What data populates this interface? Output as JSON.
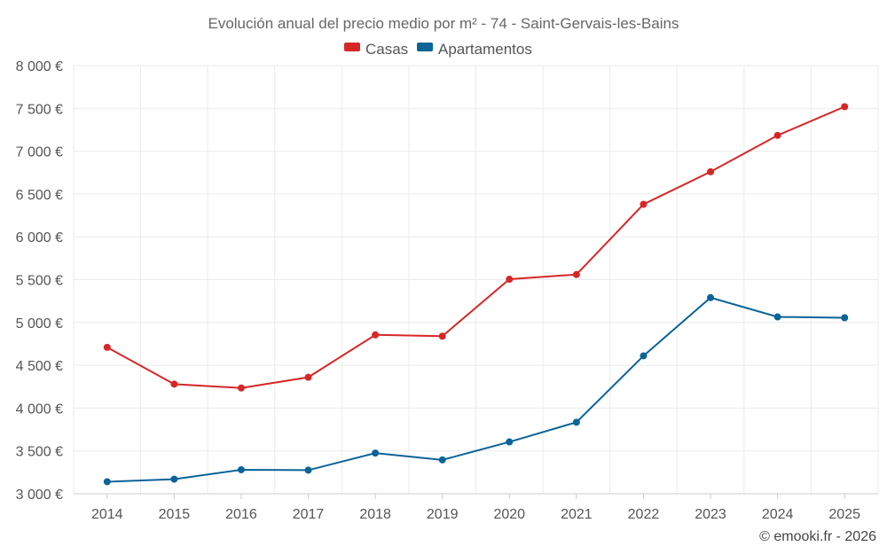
{
  "chart_data": {
    "type": "line",
    "title": "Evolución anual del precio medio por m² - 74 - Saint-Gervais-les-Bains",
    "categories": [
      "2014",
      "2015",
      "2016",
      "2017",
      "2018",
      "2019",
      "2020",
      "2021",
      "2022",
      "2023",
      "2024",
      "2025"
    ],
    "series": [
      {
        "name": "Casas",
        "color": "#d62728",
        "values": [
          4710,
          4280,
          4235,
          4360,
          4855,
          4840,
          5505,
          5560,
          6380,
          6760,
          7185,
          7520
        ]
      },
      {
        "name": "Apartamentos",
        "color": "#0b6398",
        "values": [
          3140,
          3170,
          3280,
          3275,
          3475,
          3395,
          3605,
          3835,
          4610,
          5290,
          5065,
          5055
        ]
      }
    ],
    "ylim": [
      3000,
      8000
    ],
    "yticks": [
      3000,
      3500,
      4000,
      4500,
      5000,
      5500,
      6000,
      6500,
      7000,
      7500,
      8000
    ],
    "ytick_labels": [
      "3 000 €",
      "3 500 €",
      "4 000 €",
      "4 500 €",
      "5 000 €",
      "5 500 €",
      "6 000 €",
      "6 500 €",
      "7 000 €",
      "7 500 €",
      "8 000 €"
    ],
    "grid": true,
    "legend_position": "top-center"
  },
  "credit": "© emooki.fr - 2026"
}
